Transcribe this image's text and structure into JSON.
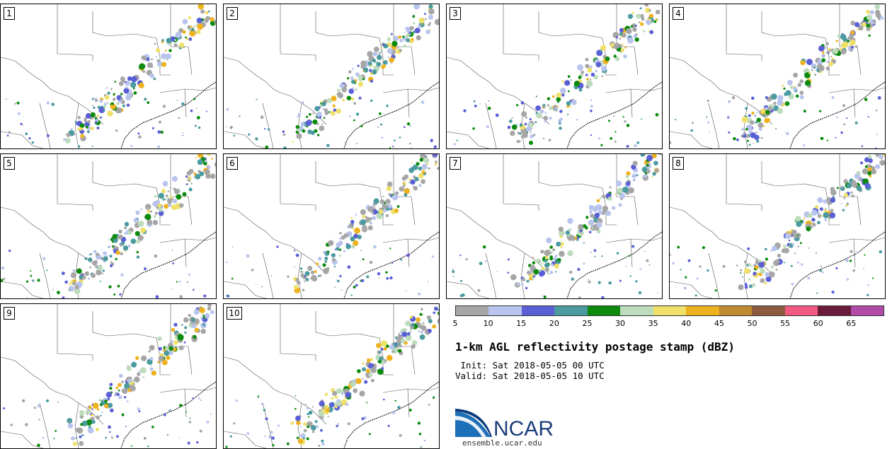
{
  "members": [
    {
      "label": "1"
    },
    {
      "label": "2"
    },
    {
      "label": "3"
    },
    {
      "label": "4"
    },
    {
      "label": "5"
    },
    {
      "label": "6"
    },
    {
      "label": "7"
    },
    {
      "label": "8"
    },
    {
      "label": "9"
    },
    {
      "label": "10"
    }
  ],
  "colorbar": {
    "colors": [
      "#a6a6a6",
      "#b8c4ee",
      "#5b5fd6",
      "#4a9aa0",
      "#0b8a0b",
      "#bcdcbc",
      "#efe06a",
      "#eeb21e",
      "#c08a30",
      "#8c5a40",
      "#f25a82",
      "#6a1a3a",
      "#b24aa8"
    ],
    "ticks": [
      "5",
      "10",
      "15",
      "20",
      "25",
      "30",
      "35",
      "40",
      "45",
      "50",
      "55",
      "60",
      "65"
    ]
  },
  "title": "1-km AGL reflectivity postage stamp (dBZ)",
  "init_line": " Init: Sat 2018-05-05 00 UTC",
  "valid_line": "Valid: Sat 2018-05-05 10 UTC",
  "logo_text": "NCAR",
  "url": "ensemble.ucar.edu"
}
